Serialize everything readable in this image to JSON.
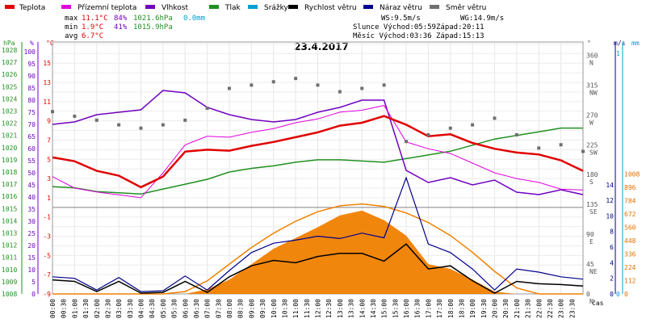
{
  "chart_data": {
    "type": "line",
    "title": "23.4.2017",
    "legend": [
      {
        "label": "Teplota",
        "color": "#e00000"
      },
      {
        "label": "Přízemní teplota",
        "color": "#e000e0"
      },
      {
        "label": "Vlhkost",
        "color": "#7000c0"
      },
      {
        "label": "Tlak",
        "color": "#209020"
      },
      {
        "label": "Srážky",
        "color": "#00a0d0"
      },
      {
        "label": "Rychlost větru",
        "color": "#000000"
      },
      {
        "label": "Náraz větru",
        "color": "#00008b"
      },
      {
        "label": "Směr větru",
        "color": "#707070"
      }
    ],
    "stats": {
      "max_label": "max",
      "max_temp": "11.1°C",
      "max_hum": "84%",
      "max_pres": "1021.6hPa",
      "max_rain": "0.0mm",
      "min_label": "min",
      "min_temp": "1.9°C",
      "min_hum": "41%",
      "min_pres": "1015.9hPa",
      "avg_label": "avg",
      "avg_temp": "6.7°C"
    },
    "wind": {
      "ws": "WS:9.5m/s",
      "wg": "WG:14.9m/s",
      "sun_rise": "Slunce Východ:05:59",
      "sun_set": "Západ:20:11",
      "moon_rise": "Měsíc  Východ:03:36",
      "moon_set": "Západ:15:13"
    },
    "axis_units": {
      "hpa": "hPa",
      "pct": "%",
      "degc": "°C",
      "deg": "°",
      "ms": "m/s",
      "mm": "mm",
      "wm2": "W/m²",
      "cas": "čas"
    },
    "x_labels": [
      "00:00",
      "00:30",
      "01:00",
      "01:30",
      "02:00",
      "02:30",
      "03:00",
      "03:30",
      "04:00",
      "04:30",
      "05:00",
      "05:30",
      "06:00",
      "06:30",
      "07:00",
      "07:30",
      "08:00",
      "08:30",
      "09:00",
      "09:30",
      "10:00",
      "10:30",
      "11:00",
      "11:30",
      "12:00",
      "12:30",
      "13:00",
      "13:30",
      "14:00",
      "14:30",
      "15:00",
      "15:30",
      "16:00",
      "16:30",
      "17:00",
      "17:30",
      "18:00",
      "18:30",
      "19:00",
      "19:30",
      "20:00",
      "20:30",
      "21:00",
      "21:30",
      "22:00",
      "22:30",
      "23:00",
      "23:30"
    ],
    "pressure_ticks": [
      "1028",
      "1027",
      "1026",
      "1025",
      "1024",
      "1023",
      "1022",
      "1021",
      "1020",
      "1019",
      "1018",
      "1017",
      "1016",
      "1015",
      "1014",
      "1013",
      "1012",
      "1011",
      "1010",
      "1009",
      "1008"
    ],
    "humidity_ticks": [
      "100",
      "95",
      "90",
      "85",
      "80",
      "75",
      "70",
      "65",
      "60",
      "55",
      "50",
      "45",
      "40",
      "35",
      "30",
      "25",
      "20",
      "15",
      "10",
      "5",
      "0"
    ],
    "temp_ticks": [
      "15",
      "13",
      "11",
      "9",
      "7",
      "5",
      "3",
      "1",
      "-1",
      "-3",
      "-5",
      "-7",
      "-9"
    ],
    "dir_ticks": [
      "360",
      "315",
      "270",
      "225",
      "180",
      "135",
      "90",
      "45",
      "0"
    ],
    "dir_names": [
      "N",
      "NW",
      "W",
      "SW",
      "S",
      "SE",
      "E",
      "NE",
      "N"
    ],
    "speed_ticks": [
      "14",
      "12",
      "10",
      "8",
      "6",
      "4",
      "2",
      "0"
    ],
    "rain_ticks": [
      "1",
      "0"
    ],
    "solar_ticks": [
      "1008",
      "896",
      "784",
      "672",
      "560",
      "448",
      "336",
      "224",
      "112",
      "0"
    ],
    "series_hourly": {
      "hours": [
        0,
        1,
        2,
        3,
        4,
        5,
        6,
        7,
        8,
        9,
        10,
        11,
        12,
        13,
        14,
        15,
        16,
        17,
        18,
        19,
        20,
        21,
        22,
        23,
        24
      ],
      "temperature": [
        5.2,
        4.8,
        3.8,
        3.3,
        2.1,
        3.2,
        5.8,
        6.0,
        5.9,
        6.4,
        6.8,
        7.3,
        7.8,
        8.5,
        8.8,
        9.5,
        8.6,
        7.4,
        7.6,
        6.7,
        6.1,
        5.7,
        5.5,
        4.9,
        3.8
      ],
      "ground_temp": [
        3.2,
        2.0,
        1.6,
        1.3,
        1.0,
        3.6,
        6.5,
        7.4,
        7.3,
        7.8,
        8.2,
        8.8,
        9.2,
        9.9,
        10.1,
        10.6,
        6.8,
        6.1,
        5.6,
        4.6,
        3.6,
        3.0,
        2.6,
        1.9,
        1.8
      ],
      "humidity": [
        70,
        71,
        74,
        75,
        76,
        84,
        83,
        77,
        74,
        72,
        71,
        72,
        75,
        77,
        80,
        80,
        51,
        46,
        48,
        45,
        47,
        42,
        41,
        43,
        41
      ],
      "pressure": [
        1016.8,
        1016.7,
        1016.4,
        1016.3,
        1016.2,
        1016.6,
        1017.0,
        1017.4,
        1018.0,
        1018.3,
        1018.5,
        1018.8,
        1019.0,
        1019.0,
        1018.9,
        1018.8,
        1019.1,
        1019.4,
        1019.7,
        1020.2,
        1020.7,
        1021.0,
        1021.3,
        1021.6,
        1021.6
      ],
      "wind_speed": [
        1.8,
        1.6,
        0.3,
        1.6,
        0.1,
        0.2,
        1.6,
        0.2,
        2.2,
        3.6,
        4.3,
        4.0,
        4.8,
        5.2,
        5.2,
        4.2,
        6.4,
        3.2,
        3.6,
        1.7,
        0.1,
        1.6,
        1.3,
        1.2,
        1.0
      ],
      "wind_gust": [
        2.2,
        2.0,
        0.5,
        2.1,
        0.3,
        0.4,
        2.3,
        0.5,
        3.0,
        5.3,
        6.5,
        6.9,
        7.4,
        7.1,
        7.8,
        7.2,
        14.9,
        6.4,
        5.3,
        3.2,
        0.5,
        3.2,
        2.8,
        2.2,
        1.9
      ],
      "wind_dir": [
        275,
        268,
        262,
        255,
        250,
        255,
        262,
        280,
        310,
        315,
        320,
        325,
        315,
        305,
        310,
        315,
        230,
        240,
        250,
        255,
        265,
        240,
        220,
        225,
        215
      ],
      "solar": [
        0,
        0,
        0,
        0,
        0,
        0,
        0,
        40,
        120,
        250,
        380,
        470,
        560,
        660,
        700,
        620,
        490,
        250,
        210,
        120,
        20,
        0,
        0,
        0,
        0
      ],
      "sun_elevation": [
        0,
        0,
        0,
        0,
        0,
        0,
        20,
        110,
        250,
        390,
        510,
        610,
        690,
        740,
        755,
        735,
        680,
        600,
        490,
        350,
        190,
        50,
        0,
        0,
        0
      ]
    }
  }
}
